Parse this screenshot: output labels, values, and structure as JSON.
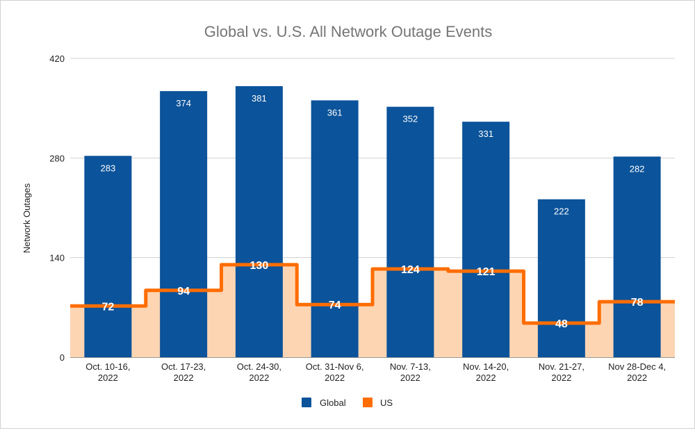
{
  "chart_data": {
    "type": "bar",
    "title": "Global vs. U.S. All Network Outage Events",
    "xlabel": "",
    "ylabel": "Network Outages",
    "ylim": [
      0,
      420
    ],
    "yticks": [
      0,
      140,
      280,
      420
    ],
    "grid": true,
    "legend_position": "bottom",
    "categories": [
      [
        "Oct. 10-16,",
        "2022"
      ],
      [
        "Oct. 17-23,",
        "2022"
      ],
      [
        "Oct. 24-30,",
        "2022"
      ],
      [
        "Oct. 31-Nov 6,",
        "2022"
      ],
      [
        "Nov. 7-13,",
        "2022"
      ],
      [
        "Nov. 14-20,",
        "2022"
      ],
      [
        "Nov.  21-27,",
        "2022"
      ],
      [
        "Nov 28-Dec 4,",
        "2022"
      ]
    ],
    "series": [
      {
        "name": "Global",
        "type": "bar",
        "color": "#0b539a",
        "values": [
          283,
          374,
          381,
          361,
          352,
          331,
          222,
          282
        ]
      },
      {
        "name": "US",
        "type": "stepped-area",
        "color": "#ff6d01",
        "fill": "#fdd5b3",
        "values": [
          72,
          94,
          130,
          74,
          124,
          121,
          48,
          78
        ]
      }
    ]
  }
}
